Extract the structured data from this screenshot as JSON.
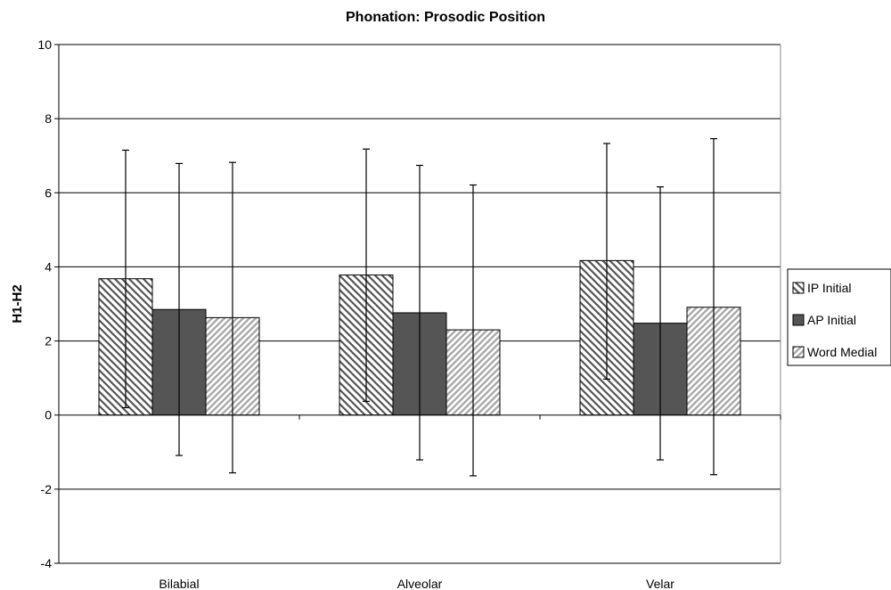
{
  "chart_data": {
    "type": "bar",
    "title": "Phonation: Prosodic Position",
    "xlabel": "",
    "ylabel": "H1-H2",
    "ylim": [
      -4,
      10
    ],
    "yticks": [
      -4,
      -2,
      0,
      2,
      4,
      6,
      8,
      10
    ],
    "grid": true,
    "legend_position": "right",
    "categories": [
      "Bilabial",
      "Alveolar",
      "Velar"
    ],
    "series": [
      {
        "name": "IP Initial",
        "fill": "hatch-back",
        "color": "#555555",
        "values": [
          3.68,
          3.78,
          4.17
        ],
        "error_low": [
          0.2,
          0.37,
          0.97
        ],
        "error_high": [
          7.15,
          7.18,
          7.33
        ]
      },
      {
        "name": "AP Initial",
        "fill": "solid",
        "color": "#555555",
        "values": [
          2.85,
          2.76,
          2.48
        ],
        "error_low": [
          -1.09,
          -1.21,
          -1.21
        ],
        "error_high": [
          6.79,
          6.74,
          6.16
        ]
      },
      {
        "name": "Word Medial",
        "fill": "hatch-forward",
        "color": "#aaaaaa",
        "values": [
          2.63,
          2.3,
          2.91
        ],
        "error_low": [
          -1.56,
          -1.64,
          -1.61
        ],
        "error_high": [
          6.82,
          6.21,
          7.46
        ]
      }
    ]
  }
}
